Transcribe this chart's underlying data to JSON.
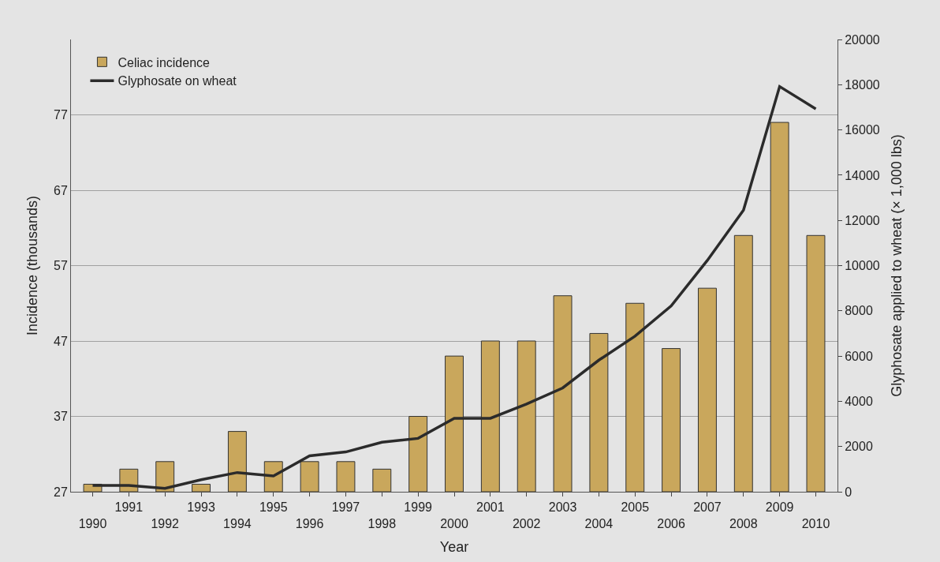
{
  "chart_data": {
    "type": "bar",
    "xlabel": "Year",
    "ylabel": "Incidence (thousands)",
    "y2label": "Glyphosate applied to wheat (× 1,000 lbs)",
    "categories": [
      "1990",
      "1991",
      "1992",
      "1993",
      "1994",
      "1995",
      "1996",
      "1997",
      "1998",
      "1999",
      "2000",
      "2001",
      "2002",
      "2003",
      "2004",
      "2005",
      "2006",
      "2007",
      "2008",
      "2009",
      "2010"
    ],
    "series": [
      {
        "name": "Celiac incidence",
        "color": "#c9a75c",
        "values": [
          28,
          30,
          31,
          28,
          35,
          31,
          31,
          31,
          30,
          37,
          45,
          47,
          47,
          53,
          48,
          52,
          46,
          54,
          61,
          76,
          61
        ]
      },
      {
        "name": "Glyphosate on wheat",
        "type": "line",
        "axis": "y2",
        "color": "#2b2b2b",
        "values": [
          280,
          280,
          150,
          530,
          850,
          700,
          1590,
          1760,
          2190,
          2360,
          3250,
          3250,
          3880,
          4590,
          5820,
          6880,
          8220,
          10230,
          12450,
          17920,
          16930
        ]
      }
    ],
    "ylim": [
      27,
      87
    ],
    "yticks": [
      27,
      37,
      47,
      57,
      67,
      77
    ],
    "y2lim": [
      0,
      20000
    ],
    "y2ticks": [
      0,
      2000,
      4000,
      6000,
      8000,
      10000,
      12000,
      14000,
      16000,
      18000,
      20000
    ],
    "grid": "y",
    "legend": "top left",
    "marker": "none",
    "line_style": "solid"
  }
}
